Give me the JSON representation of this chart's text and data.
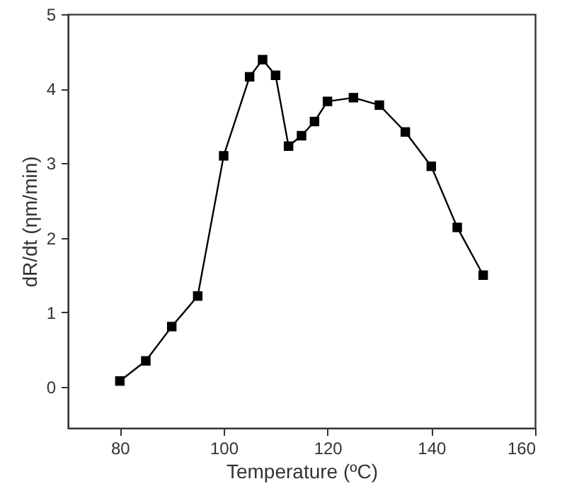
{
  "chart_data": {
    "type": "line",
    "xlabel": "Temperature (ºC)",
    "ylabel": "dR/dt (ηm/min)",
    "x": [
      80,
      85,
      90,
      95,
      100,
      105,
      107.5,
      110,
      112.5,
      115,
      117.5,
      120,
      125,
      130,
      135,
      140,
      145,
      150
    ],
    "series": [
      {
        "color": "#000000",
        "values": [
          0.08,
          0.35,
          0.81,
          1.22,
          3.1,
          4.16,
          4.39,
          4.18,
          3.23,
          3.37,
          3.56,
          3.83,
          3.88,
          3.78,
          3.42,
          2.96,
          2.14,
          1.5
        ]
      }
    ],
    "xlim": [
      70,
      160
    ],
    "ylim": [
      -0.55,
      5
    ],
    "xticks": [
      80,
      100,
      120,
      140,
      160
    ],
    "yticks": [
      0,
      1,
      2,
      3,
      4,
      5
    ],
    "marker": "square",
    "line_style": "solid",
    "grid": false
  }
}
